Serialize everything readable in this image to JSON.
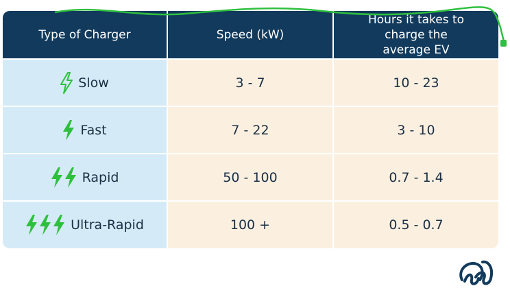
{
  "table": {
    "header": [
      "Type of Charger",
      "Speed (kW)",
      "Hours it takes to charge the average EV"
    ],
    "rows": [
      [
        "Slow",
        "3 - 7",
        "10 - 23"
      ],
      [
        "Fast",
        "7 - 22",
        "3 - 10"
      ],
      [
        "Rapid",
        "50 - 100",
        "0.7 - 1.4"
      ],
      [
        "Ultra-Rapid",
        "100 +",
        "0.5 - 0.7"
      ]
    ]
  }
}
